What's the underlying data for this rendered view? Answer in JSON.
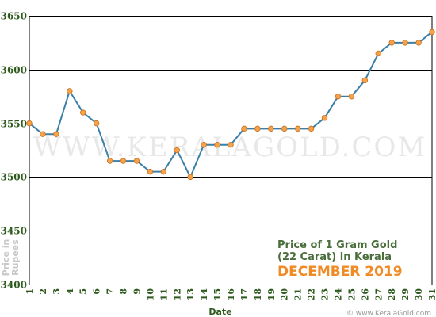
{
  "chart_data": {
    "type": "line",
    "x": [
      "1",
      "2",
      "3",
      "4",
      "5",
      "6",
      "7",
      "8",
      "9",
      "10",
      "11",
      "12",
      "13",
      "14",
      "15",
      "16",
      "17",
      "18",
      "19",
      "20",
      "21",
      "22",
      "23",
      "24",
      "25",
      "26",
      "27",
      "28",
      "29",
      "30",
      "31"
    ],
    "values": [
      3550,
      3540,
      3540,
      3580,
      3560,
      3550,
      3515,
      3515,
      3515,
      3505,
      3505,
      3525,
      3500,
      3530,
      3530,
      3530,
      3545,
      3545,
      3545,
      3545,
      3545,
      3545,
      3555,
      3575,
      3575,
      3590,
      3615,
      3625,
      3625,
      3625,
      3635
    ],
    "ylim": [
      3400,
      3650
    ],
    "yticks": [
      3400,
      3450,
      3500,
      3550,
      3600,
      3650
    ],
    "xlabel": "Date",
    "ylabel": "Price in Rupees",
    "grid": true,
    "line_color": "#3b7ea8",
    "marker_color": "#f5a24b",
    "gridline_color": "#000000"
  },
  "info": {
    "line1": "Price of 1 Gram Gold",
    "line2": "(22 Carat) in Kerala",
    "line3": "DECEMBER 2019"
  },
  "watermark": "WWW.KERALAGOLD.COM",
  "source": "© www.KeralaGold.com"
}
